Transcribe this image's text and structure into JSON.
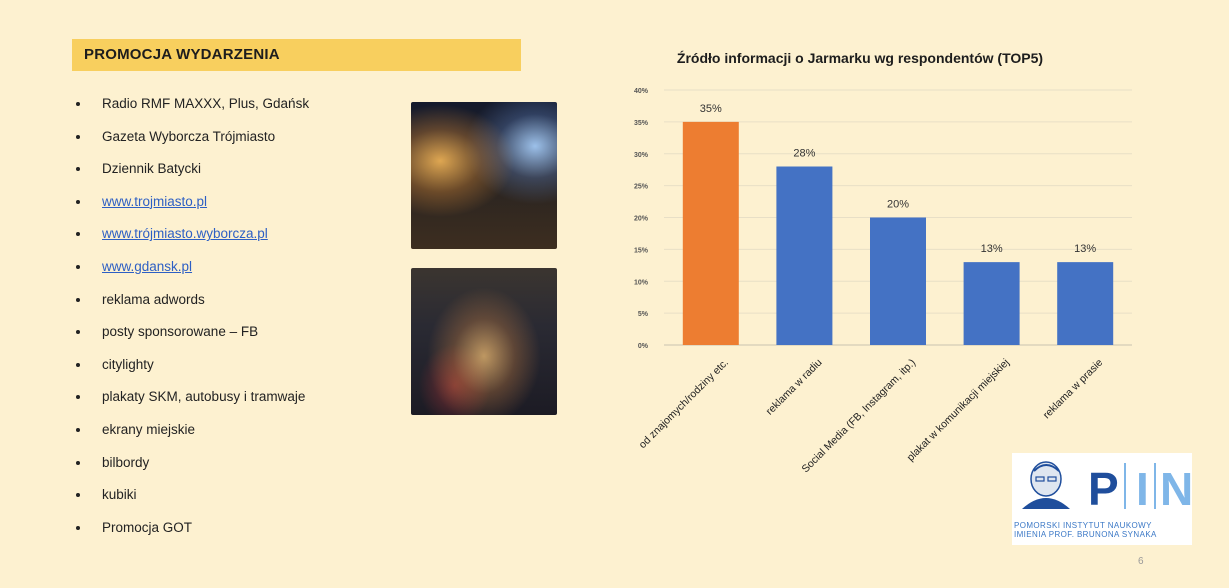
{
  "slide": {
    "section_title": "PROMOCJA WYDARZENIA",
    "page_number": "6"
  },
  "bullets": [
    {
      "text": "Radio RMF MAXXX, Plus, Gdańsk",
      "link": false
    },
    {
      "text": "Gazeta Wyborcza Trójmiasto",
      "link": false
    },
    {
      "text": "Dziennik Batycki",
      "link": false
    },
    {
      "text": "www.trojmiasto.pl",
      "link": true
    },
    {
      "text": "www.trójmiasto.wyborcza.pl",
      "link": true
    },
    {
      "text": "www.gdansk.pl",
      "link": true
    },
    {
      "text": "reklama adwords",
      "link": false
    },
    {
      "text": "posty sponsorowane – FB",
      "link": false
    },
    {
      "text": "citylighty",
      "link": false
    },
    {
      "text": "plakaty SKM, autobusy i tramwaje",
      "link": false
    },
    {
      "text": "ekrany miejskie",
      "link": false
    },
    {
      "text": "bilbordy",
      "link": false
    },
    {
      "text": "kubiki",
      "link": false
    },
    {
      "text": "Promocja GOT",
      "link": false
    }
  ],
  "logo": {
    "letters": [
      "P",
      "I",
      "N"
    ],
    "line1": "POMORSKI INSTYTUT NAUKOWY",
    "line2": "IMIENIA PROF. BRUNONA SYNAKA"
  },
  "colors": {
    "background": "#fdf1d0",
    "title_bar": "#f8cf5e",
    "bar_highlight": "#ed7d31",
    "bar_default": "#4472c4",
    "link": "#2d5fc4",
    "logo_blue": "#1f4e9c",
    "logo_light": "#7fb6e8"
  },
  "chart_data": {
    "type": "bar",
    "title": "Źródło informacji o Jarmarku wg respondentów (TOP5)",
    "categories": [
      "od znajomych/rodziny etc.",
      "reklama w radiu",
      "Social Media (FB, Instagram, itp.)",
      "plakat w komunikacji miejskiej",
      "reklama w prasie"
    ],
    "values": [
      35,
      28,
      20,
      13,
      13
    ],
    "data_labels": [
      "35%",
      "28%",
      "20%",
      "13%",
      "13%"
    ],
    "bar_colors": [
      "#ed7d31",
      "#4472c4",
      "#4472c4",
      "#4472c4",
      "#4472c4"
    ],
    "ylim": [
      0,
      40
    ],
    "y_ticks": [
      0,
      5,
      10,
      15,
      20,
      25,
      30,
      35,
      40
    ],
    "y_tick_labels": [
      "0%",
      "5%",
      "10%",
      "15%",
      "20%",
      "25%",
      "30%",
      "35%",
      "40%"
    ],
    "grid": true,
    "legend": "none"
  }
}
